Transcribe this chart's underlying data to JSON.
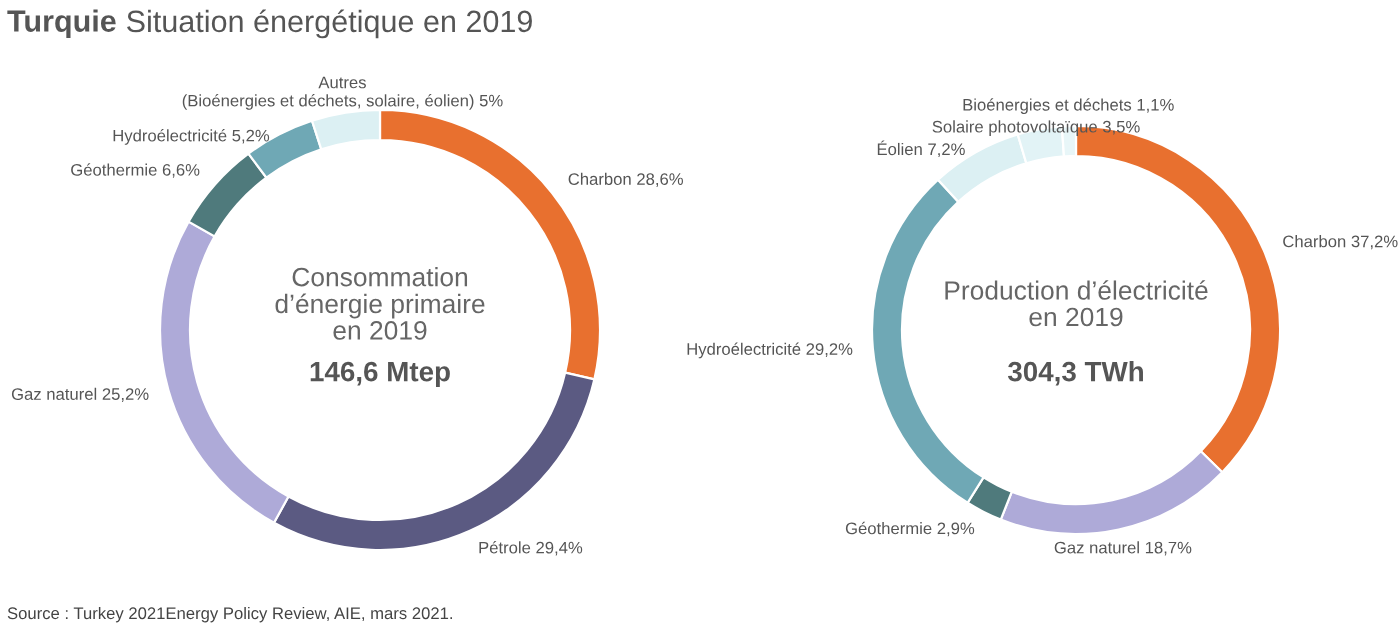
{
  "chart_data": [
    {
      "type": "donut",
      "title": "Turquie Situation énergétique en 2019",
      "categories": [
        "Charbon",
        "Pétrole",
        "Gaz naturel",
        "Géothermie",
        "Hydroélectricité",
        "Autres\n(Bioénergies et déchets, solaire, éolien)"
      ],
      "values": [
        28.6,
        29.4,
        25.2,
        6.6,
        5.2,
        5
      ],
      "value_labels": [
        "28,6%",
        "29,4%",
        "25,2%",
        "6,6%",
        "5,2%",
        "5%"
      ],
      "colors": [
        "#e8702f",
        "#5b5a82",
        "#aeaad8",
        "#4f7a7c",
        "#6fa8b5",
        "#dcf0f3"
      ],
      "annotations": [
        "Consommation\nd’énergie primaire\nen 2019",
        "146,6 Mtep",
        "Source : Turkey 2021Energy Policy Review, AIE, mars 2021."
      ]
    },
    {
      "type": "donut",
      "categories": [
        "Charbon",
        "Gaz naturel",
        "Géothermie",
        "Hydroélectricité",
        "Éolien",
        "Solaire photovoltaïque",
        "Bioénergies et déchets"
      ],
      "values": [
        37.2,
        18.7,
        2.9,
        29.2,
        7.2,
        3.5,
        1.1
      ],
      "value_labels": [
        "37,2%",
        "18,7%",
        "2,9%",
        "29,2%",
        "7,2%",
        "3,5%",
        "1,1%"
      ],
      "colors": [
        "#e8702f",
        "#aeaad8",
        "#4f7a7c",
        "#6fa8b5",
        "#dcf0f3",
        "#e2f3f6",
        "#e8f6f8"
      ],
      "annotations": [
        "Production d’électricité\nen 2019",
        "304,3 TWh"
      ]
    }
  ]
}
